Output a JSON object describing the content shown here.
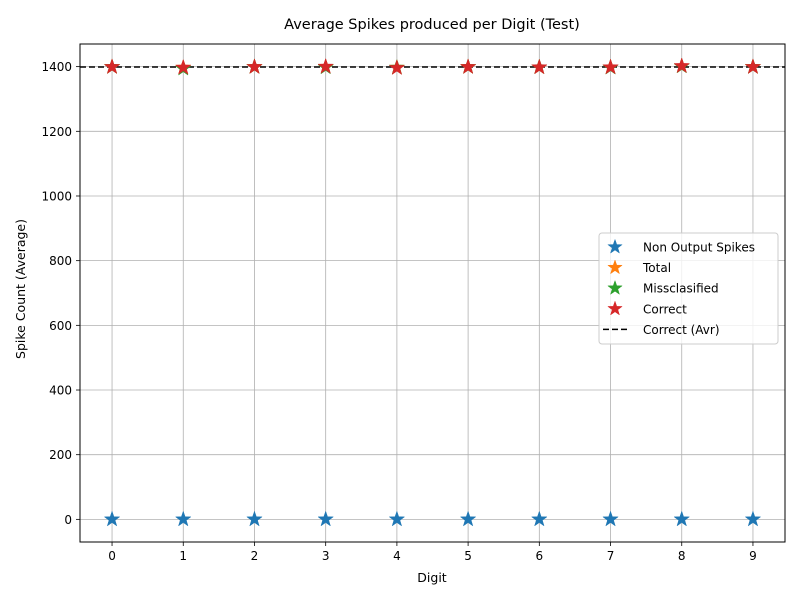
{
  "chart_data": {
    "type": "scatter",
    "title": "Average Spikes produced per Digit (Test)",
    "xlabel": "Digit",
    "ylabel": "Spike Count (Average)",
    "x": [
      0,
      1,
      2,
      3,
      4,
      5,
      6,
      7,
      8,
      9
    ],
    "xlim": [
      -0.45,
      9.45
    ],
    "ylim": [
      -70,
      1470
    ],
    "yticks": [
      0,
      200,
      400,
      600,
      800,
      1000,
      1200,
      1400
    ],
    "grid": true,
    "legend_position": "center-right",
    "series": [
      {
        "name": "Non Output Spikes",
        "color": "#1f77b4",
        "marker": "star",
        "values": [
          0,
          0,
          0,
          0,
          0,
          0,
          0,
          0,
          0,
          0
        ]
      },
      {
        "name": "Total",
        "color": "#ff7f0e",
        "marker": "star",
        "values": [
          1399,
          1397,
          1399,
          1399,
          1397,
          1399,
          1398,
          1398,
          1401,
          1399
        ]
      },
      {
        "name": "Missclasified",
        "color": "#2ca02c",
        "marker": "star",
        "values": [
          1399,
          1394,
          1399,
          1398,
          1397,
          1399,
          1398,
          1397,
          1401,
          1399
        ]
      },
      {
        "name": "Correct",
        "color": "#d62728",
        "marker": "star",
        "values": [
          1399,
          1397,
          1399,
          1400,
          1396,
          1399,
          1398,
          1398,
          1402,
          1399
        ]
      }
    ],
    "reference_line": {
      "name": "Correct (Avr)",
      "color": "#000000",
      "style": "dashed",
      "y": 1399
    }
  }
}
